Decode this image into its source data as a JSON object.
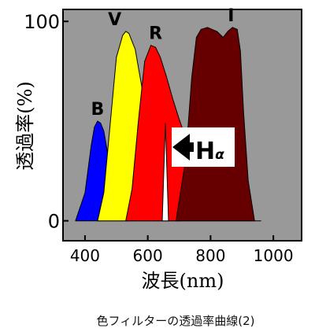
{
  "chart_data": {
    "type": "area",
    "title": "",
    "xlabel": "波長(nm)",
    "ylabel": "透過率(%)",
    "xlim": [
      330,
      1090
    ],
    "ylim": [
      -10,
      106
    ],
    "xticks": [
      400,
      600,
      800,
      1000
    ],
    "yticks": [
      0,
      100
    ],
    "grid": false,
    "background": "#999999",
    "series": [
      {
        "name": "B",
        "color": "#0000ff",
        "x": [
          370,
          400,
          420,
          430,
          440,
          450,
          460,
          470,
          480,
          500,
          520,
          540
        ],
        "y": [
          0,
          14,
          38,
          47,
          50,
          49,
          45,
          36,
          24,
          8,
          2,
          0
        ]
      },
      {
        "name": "V",
        "color": "#ffff00",
        "x": [
          440,
          460,
          480,
          500,
          520,
          530,
          540,
          560,
          580,
          600,
          620,
          640,
          660,
          680,
          700
        ],
        "y": [
          0,
          14,
          48,
          82,
          93,
          95,
          94,
          86,
          68,
          44,
          22,
          10,
          4,
          1,
          0
        ]
      },
      {
        "name": "R",
        "color": "#ff0000",
        "x": [
          530,
          550,
          570,
          590,
          610,
          625,
          640,
          660,
          680,
          700,
          720,
          740,
          760,
          780,
          800,
          820,
          840,
          860,
          880,
          900,
          930,
          960
        ],
        "y": [
          0,
          16,
          50,
          80,
          88,
          87,
          82,
          72,
          61,
          51,
          42,
          33,
          24,
          17,
          11,
          7,
          5,
          3,
          2,
          1,
          0,
          0
        ]
      },
      {
        "name": "I",
        "color": "#660000",
        "x": [
          690,
          720,
          740,
          755,
          770,
          790,
          820,
          840,
          855,
          870,
          885,
          895,
          905,
          920,
          940
        ],
        "y": [
          0,
          30,
          72,
          92,
          96,
          97,
          95,
          92,
          95,
          97,
          96,
          85,
          55,
          20,
          0
        ]
      }
    ],
    "halpha": {
      "label": "H",
      "subscript": "α",
      "wavelength": 656,
      "peak": 49,
      "color": "#ffffff"
    }
  },
  "caption": "色フィルターの透過率曲線(2)"
}
